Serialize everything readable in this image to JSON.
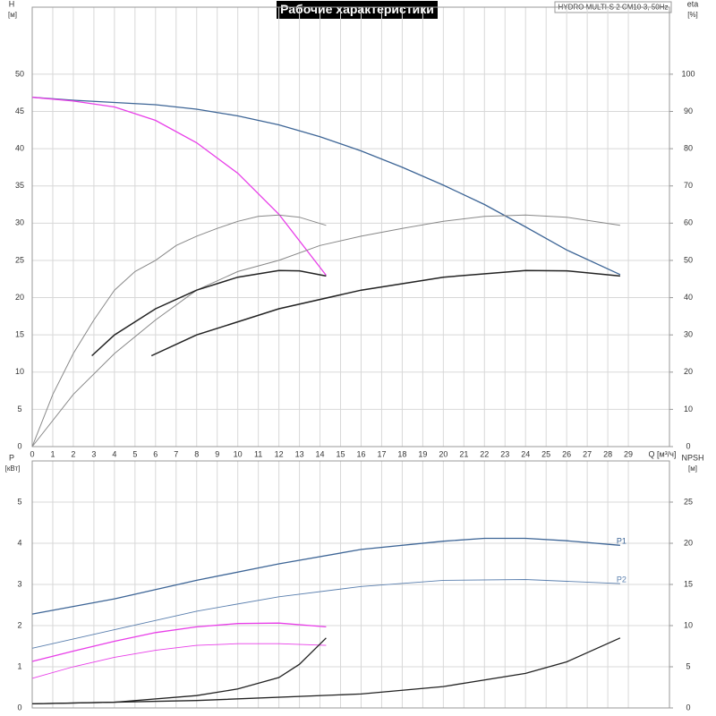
{
  "chart_data": [
    {
      "type": "line",
      "title": "Рабочие характеристики",
      "subtitle": "HYDRO MULTI-S 2 CM10-3, 50Hz",
      "ylabel": "H",
      "yunit": "[м]",
      "y2label": "eta",
      "y2unit": "[%]",
      "xlabel": "Q [м³/ч]",
      "xlim": [
        0,
        31
      ],
      "xticks": [
        0,
        1,
        2,
        3,
        4,
        5,
        6,
        7,
        8,
        9,
        10,
        11,
        12,
        13,
        14,
        15,
        16,
        17,
        18,
        19,
        20,
        21,
        22,
        23,
        24,
        25,
        26,
        27,
        28,
        29
      ],
      "ylim": [
        0,
        59
      ],
      "yticks": [
        0,
        5,
        10,
        15,
        20,
        25,
        30,
        35,
        40,
        45,
        50
      ],
      "y2lim": [
        0,
        118
      ],
      "y2ticks": [
        0,
        10,
        20,
        30,
        40,
        50,
        60,
        70,
        80,
        90,
        100
      ],
      "grid": true,
      "series": [
        {
          "color": "#3d6596",
          "stroke_width": 1.3,
          "x": [
            0,
            2,
            4,
            6,
            8,
            10,
            12,
            14,
            16,
            18,
            20,
            22,
            24,
            26,
            28.6
          ],
          "values": [
            46.9,
            46.5,
            46.2,
            45.9,
            45.3,
            44.4,
            43.2,
            41.6,
            39.7,
            37.5,
            35.1,
            32.5,
            29.5,
            26.4,
            23.1
          ]
        },
        {
          "color": "#e83ee8",
          "stroke_width": 1.3,
          "x": [
            0,
            2,
            4,
            6,
            8,
            10,
            12,
            14.3
          ],
          "values": [
            46.9,
            46.4,
            45.6,
            43.8,
            40.8,
            36.7,
            31.2,
            23.0
          ]
        },
        {
          "color": "#888888",
          "stroke_width": 1,
          "axis": "y2",
          "x": [
            0,
            1,
            2,
            3,
            4,
            5,
            6,
            7,
            8,
            9,
            10,
            11,
            12,
            13,
            14.3
          ],
          "values": [
            0,
            14,
            25,
            34,
            42,
            47,
            50,
            54,
            56.5,
            58.6,
            60.5,
            61.8,
            62.2,
            61.6,
            59.4
          ]
        },
        {
          "color": "#888888",
          "stroke_width": 1,
          "axis": "y2",
          "x": [
            0,
            2,
            4,
            6,
            8,
            10,
            12,
            14,
            16,
            18,
            20,
            22,
            24,
            26,
            28.6
          ],
          "values": [
            0,
            14,
            25,
            34,
            42,
            47,
            50,
            54,
            56.5,
            58.6,
            60.5,
            61.8,
            62.2,
            61.6,
            59.4
          ]
        },
        {
          "color": "#222222",
          "stroke_width": 1.5,
          "axis": "y2",
          "x": [
            2.9,
            4,
            6,
            8,
            10,
            12,
            13,
            14.3
          ],
          "values": [
            24.4,
            30,
            37,
            42,
            45.5,
            47.3,
            47.2,
            45.8
          ]
        },
        {
          "color": "#222222",
          "stroke_width": 1.5,
          "axis": "y2",
          "x": [
            5.8,
            8,
            12,
            16,
            20,
            24,
            26,
            28.6
          ],
          "values": [
            24.4,
            30,
            37,
            42,
            45.5,
            47.3,
            47.2,
            45.8
          ]
        }
      ]
    },
    {
      "type": "line",
      "ylabel": "P",
      "yunit": "[кВт]",
      "y2label": "NPSH",
      "y2unit": "[м]",
      "xlim": [
        0,
        31
      ],
      "xticks": [
        0,
        1,
        2,
        3,
        4,
        5,
        6,
        7,
        8,
        9,
        10,
        11,
        12,
        13,
        14,
        15,
        16,
        17,
        18,
        19,
        20,
        21,
        22,
        23,
        24,
        25,
        26,
        27,
        28,
        29
      ],
      "ylim": [
        0,
        6
      ],
      "yticks": [
        0,
        1,
        2,
        3,
        4,
        5
      ],
      "y2lim": [
        0,
        30
      ],
      "y2ticks": [
        0,
        5,
        10,
        15,
        20,
        25
      ],
      "grid": true,
      "series": [
        {
          "name": "P1",
          "color": "#3d6596",
          "stroke_width": 1.3,
          "x": [
            0,
            4,
            8,
            12,
            16,
            20,
            22,
            24,
            26,
            28.6
          ],
          "values": [
            2.28,
            2.65,
            3.1,
            3.5,
            3.85,
            4.05,
            4.12,
            4.12,
            4.06,
            3.95
          ]
        },
        {
          "name": "P2",
          "color": "#5a7fae",
          "stroke_width": 0.9,
          "x": [
            0,
            4,
            8,
            12,
            16,
            20,
            24,
            28.6
          ],
          "values": [
            1.45,
            1.9,
            2.35,
            2.7,
            2.95,
            3.1,
            3.12,
            3.02
          ]
        },
        {
          "color": "#e83ee8",
          "stroke_width": 1.3,
          "x": [
            0,
            2,
            4,
            6,
            8,
            10,
            12,
            14.3
          ],
          "values": [
            1.13,
            1.38,
            1.62,
            1.83,
            1.97,
            2.05,
            2.06,
            1.97
          ]
        },
        {
          "color": "#e83ee8",
          "stroke_width": 0.9,
          "x": [
            0,
            2,
            4,
            6,
            8,
            10,
            12,
            14.3
          ],
          "values": [
            0.72,
            1.0,
            1.23,
            1.4,
            1.52,
            1.56,
            1.56,
            1.52
          ]
        },
        {
          "color": "#222222",
          "stroke_width": 1.3,
          "axis": "y2",
          "x": [
            0,
            4,
            8,
            10,
            12,
            13,
            14.3
          ],
          "values": [
            0.5,
            0.7,
            1.5,
            2.3,
            3.7,
            5.3,
            8.5
          ]
        },
        {
          "color": "#222222",
          "stroke_width": 1.3,
          "axis": "y2",
          "x": [
            0,
            8,
            16,
            20,
            24,
            26,
            28.6
          ],
          "values": [
            0.5,
            0.9,
            1.7,
            2.6,
            4.2,
            5.6,
            8.5
          ]
        }
      ]
    }
  ]
}
